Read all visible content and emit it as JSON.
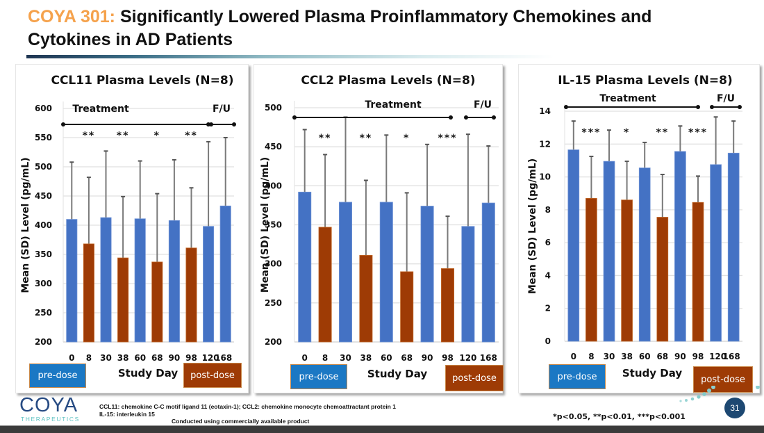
{
  "header": {
    "title_accent": "COYA 301:",
    "title_line1": " Significantly Lowered Plasma Proinflammatory Chemokines and",
    "title_line2": "Cytokines in AD Patients"
  },
  "colors": {
    "accent": "#F5A24C",
    "pre_dose": "#4472C4",
    "post_dose": "#9E3B05",
    "legend_pre": "#1B78C4",
    "legend_post": "#9E3B05",
    "page_badge": "#1d4872"
  },
  "legend": {
    "pre_dose": "pre-dose",
    "post_dose": "post-dose"
  },
  "chart_data": [
    {
      "type": "bar",
      "title": "CCL11 Plasma Levels (N=8)",
      "xlabel": "Study Day",
      "ylabel": "Mean (SD) Level (pg/mL)",
      "ylim": [
        200,
        600
      ],
      "yticks": [
        200,
        250,
        300,
        350,
        400,
        450,
        500,
        550,
        600
      ],
      "grid": true,
      "categories": [
        "0",
        "8",
        "30",
        "38",
        "60",
        "68",
        "90",
        "98",
        "120",
        "168"
      ],
      "category_labels_compact": true,
      "dose_status": [
        "pre",
        "post",
        "pre",
        "post",
        "pre",
        "post",
        "pre",
        "post",
        "pre",
        "pre"
      ],
      "series": [
        {
          "name": "Mean",
          "values": [
            410,
            368,
            413,
            344,
            411,
            337,
            408,
            361,
            398,
            433
          ]
        },
        {
          "name": "Mean+SD",
          "values": [
            508,
            482,
            527,
            449,
            510,
            454,
            512,
            464,
            543,
            550
          ]
        }
      ],
      "significance": [
        {
          "after_category": "8",
          "label": "**"
        },
        {
          "after_category": "38",
          "label": "**"
        },
        {
          "after_category": "68",
          "label": "*"
        },
        {
          "after_category": "98",
          "label": "**"
        }
      ],
      "phases": [
        {
          "label": "Treatment",
          "from": "0",
          "to": "98"
        },
        {
          "label": "F/U",
          "from": "120",
          "to": "168"
        }
      ]
    },
    {
      "type": "bar",
      "title": "CCL2 Plasma Levels (N=8)",
      "xlabel": "Study Day",
      "ylabel": "Mean (SD) Level (pg/mL)",
      "ylim": [
        200,
        500
      ],
      "yticks": [
        200,
        250,
        300,
        350,
        400,
        450,
        500
      ],
      "grid": true,
      "categories": [
        "0",
        "8",
        "30",
        "38",
        "60",
        "68",
        "90",
        "98",
        "120",
        "168"
      ],
      "category_labels_compact": false,
      "dose_status": [
        "pre",
        "post",
        "pre",
        "post",
        "pre",
        "post",
        "pre",
        "post",
        "pre",
        "pre"
      ],
      "series": [
        {
          "name": "Mean",
          "values": [
            392,
            347,
            379,
            311,
            379,
            290,
            374,
            294,
            348,
            378
          ]
        },
        {
          "name": "Mean+SD",
          "values": [
            472,
            440,
            488,
            407,
            465,
            391,
            453,
            361,
            466,
            451
          ]
        }
      ],
      "significance": [
        {
          "after_category": "8",
          "label": "**"
        },
        {
          "after_category": "38",
          "label": "**"
        },
        {
          "after_category": "68",
          "label": "*"
        },
        {
          "after_category": "98",
          "label": "***"
        }
      ],
      "phases": [
        {
          "label": "Treatment",
          "from": "0",
          "to": "98"
        },
        {
          "label": "F/U",
          "from": "120",
          "to": "168"
        }
      ]
    },
    {
      "type": "bar",
      "title": "IL-15 Plasma Levels (N=8)",
      "xlabel": "Study Day",
      "ylabel": "Mean (SD) Level (pg/mL)",
      "ylim": [
        0,
        14
      ],
      "yticks": [
        0,
        2,
        4,
        6,
        8,
        10,
        12,
        14
      ],
      "grid": true,
      "categories": [
        "0",
        "8",
        "30",
        "38",
        "60",
        "68",
        "90",
        "98",
        "120",
        "168"
      ],
      "category_labels_compact": true,
      "dose_status": [
        "pre",
        "post",
        "pre",
        "post",
        "pre",
        "post",
        "pre",
        "post",
        "pre",
        "pre"
      ],
      "series": [
        {
          "name": "Mean",
          "values": [
            11.65,
            8.7,
            10.95,
            8.6,
            10.55,
            7.55,
            11.55,
            8.45,
            10.75,
            11.45
          ]
        },
        {
          "name": "Mean+SD",
          "values": [
            13.4,
            11.25,
            12.85,
            10.95,
            12.1,
            10.15,
            13.1,
            10.05,
            13.65,
            13.4
          ]
        }
      ],
      "significance": [
        {
          "after_category": "8",
          "label": "***"
        },
        {
          "after_category": "38",
          "label": "*"
        },
        {
          "after_category": "68",
          "label": "**"
        },
        {
          "after_category": "98",
          "label": "***"
        }
      ],
      "phases": [
        {
          "label": "Treatment",
          "from": "0",
          "to": "98"
        },
        {
          "label": "F/U",
          "from": "120",
          "to": "168"
        }
      ]
    }
  ],
  "footer": {
    "logo_word": "COYA",
    "logo_sub": "THERAPEUTICS",
    "abbrev_line1": "CCL11: chemokine C-C motif ligand 11 (eotaxin-1);  CCL2:  chemokine monocyte chemoattractant protein 1",
    "abbrev_line2": "IL-15: interleukin 15",
    "note": "Conducted using commercially available product",
    "pvalues": "*p<0.05, **p<0.01, ***p<0.001",
    "page_number": "31"
  }
}
